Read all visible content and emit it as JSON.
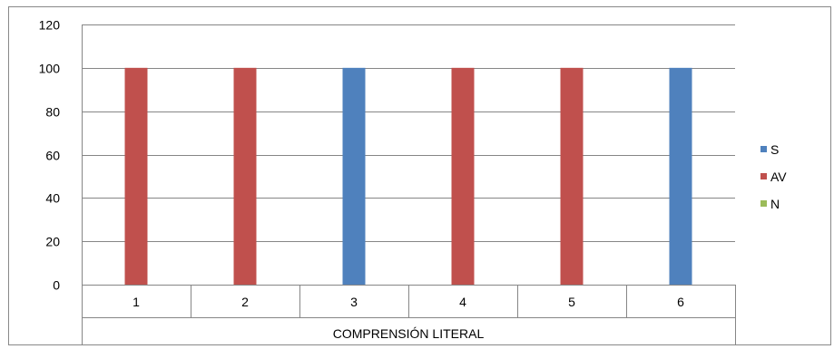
{
  "chart_data": {
    "type": "bar",
    "title": "",
    "xlabel": "",
    "ylabel": "",
    "group_label": "COMPRENSIÓN LITERAL",
    "categories": [
      "1",
      "2",
      "3",
      "4",
      "5",
      "6"
    ],
    "ylim": [
      0,
      120
    ],
    "yticks": [
      0,
      20,
      40,
      60,
      80,
      100,
      120
    ],
    "grid": true,
    "legend_position": "right",
    "series": [
      {
        "name": "S",
        "color": "#4f81bd",
        "values": [
          0,
          0,
          100,
          0,
          0,
          100
        ]
      },
      {
        "name": "AV",
        "color": "#c0504d",
        "values": [
          100,
          100,
          0,
          100,
          100,
          0
        ]
      },
      {
        "name": "N",
        "color": "#9bbb59",
        "values": [
          0,
          0,
          0,
          0,
          0,
          0
        ]
      }
    ]
  }
}
